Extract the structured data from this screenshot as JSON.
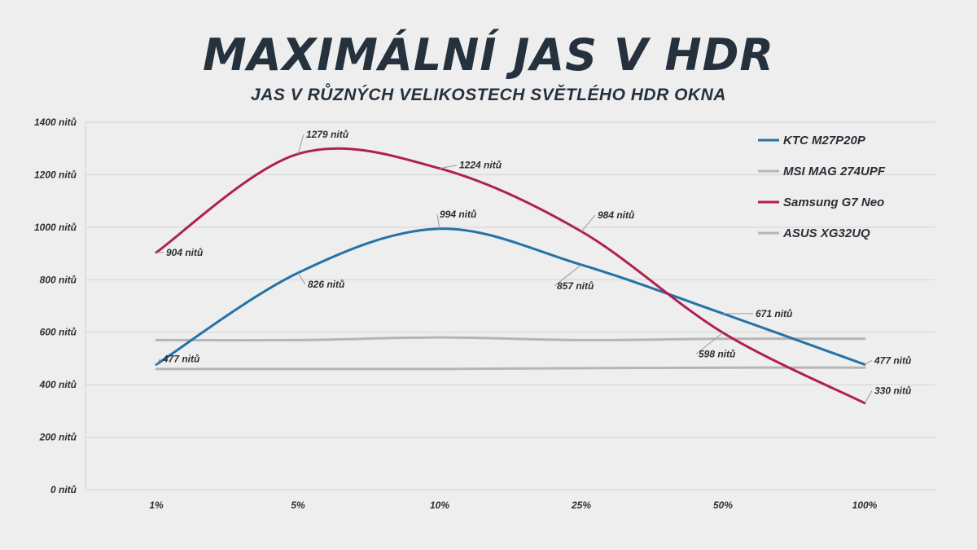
{
  "chart_data": {
    "type": "line",
    "title": "MAXIMÁLNÍ JAS V HDR",
    "subtitle": "JAS V RŮZNÝCH VELIKOSTECH SVĚTLÉHO HDR OKNA",
    "categories": [
      "1%",
      "5%",
      "10%",
      "25%",
      "50%",
      "100%"
    ],
    "ylim": [
      0,
      1400
    ],
    "yticks": [
      {
        "value": 0,
        "label": "0 nitů"
      },
      {
        "value": 200,
        "label": "200 nitů"
      },
      {
        "value": 400,
        "label": "400 nitů"
      },
      {
        "value": 600,
        "label": "600 nitů"
      },
      {
        "value": 800,
        "label": "800 nitů"
      },
      {
        "value": 1000,
        "label": "1000 nitů"
      },
      {
        "value": 1200,
        "label": "1200 nitů"
      },
      {
        "value": 1400,
        "label": "1400 nitů"
      }
    ],
    "grid": true,
    "legend_position": "top-right",
    "series": [
      {
        "name": "KTC M27P20P",
        "color": "#2472a8",
        "values": [
          477,
          826,
          994,
          857,
          671,
          477
        ],
        "labels": [
          "477 nitů",
          "826 nitů",
          "994 nitů",
          "857 nitů",
          "671 nitů",
          "477 nitů"
        ]
      },
      {
        "name": "MSI MAG 274UPF",
        "color": "#b5b5b5",
        "values": [
          570,
          570,
          580,
          570,
          575,
          575
        ],
        "labels": []
      },
      {
        "name": "Samsung G7 Neo",
        "color": "#b01f52",
        "values": [
          904,
          1279,
          1224,
          984,
          598,
          330
        ],
        "labels": [
          "904 nitů",
          "1279 nitů",
          "1224 nitů",
          "984 nitů",
          "598 nitů",
          "330 nitů"
        ]
      },
      {
        "name": "ASUS XG32UQ",
        "color": "#b5b5b5",
        "values": [
          460,
          460,
          460,
          463,
          465,
          465
        ],
        "labels": []
      }
    ]
  }
}
